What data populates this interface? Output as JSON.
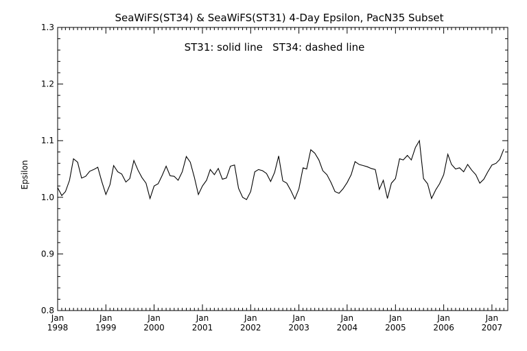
{
  "chart_data": {
    "type": "line",
    "title": "SeaWiFS(ST34) & SeaWiFS(ST31) 4-Day Epsilon, PacN35 Subset",
    "annotation": "ST31: solid line   ST34: dashed line",
    "xlabel": "",
    "ylabel": "Epsilon",
    "xlim": [
      "1998-01-01",
      "2007-05-01"
    ],
    "ylim": [
      0.8,
      1.3
    ],
    "yticks": [
      "0.8",
      "0.9",
      "1.0",
      "1.1",
      "1.2",
      "1.3"
    ],
    "xticks": [
      {
        "month": "Jan",
        "year": "1998"
      },
      {
        "month": "Jan",
        "year": "1999"
      },
      {
        "month": "Jan",
        "year": "2000"
      },
      {
        "month": "Jan",
        "year": "2001"
      },
      {
        "month": "Jan",
        "year": "2002"
      },
      {
        "month": "Jan",
        "year": "2003"
      },
      {
        "month": "Jan",
        "year": "2004"
      },
      {
        "month": "Jan",
        "year": "2005"
      },
      {
        "month": "Jan",
        "year": "2006"
      },
      {
        "month": "Jan",
        "year": "2007"
      }
    ],
    "grid": false,
    "series": [
      {
        "name": "ST31",
        "style": "solid",
        "color": "#000000",
        "points": [
          [
            "1998-01-01",
            1.017
          ],
          [
            "1998-02-01",
            1.003
          ],
          [
            "1998-03-01",
            1.01
          ],
          [
            "1998-04-01",
            1.03
          ],
          [
            "1998-05-01",
            1.068
          ],
          [
            "1998-06-01",
            1.062
          ],
          [
            "1998-07-01",
            1.034
          ],
          [
            "1998-08-01",
            1.037
          ],
          [
            "1998-09-01",
            1.046
          ],
          [
            "1998-10-01",
            1.049
          ],
          [
            "1998-11-01",
            1.053
          ],
          [
            "1998-12-01",
            1.028
          ],
          [
            "1999-01-01",
            1.005
          ],
          [
            "1999-02-01",
            1.022
          ],
          [
            "1999-03-01",
            1.056
          ],
          [
            "1999-04-01",
            1.045
          ],
          [
            "1999-05-01",
            1.041
          ],
          [
            "1999-06-01",
            1.027
          ],
          [
            "1999-07-01",
            1.033
          ],
          [
            "1999-08-01",
            1.065
          ],
          [
            "1999-09-01",
            1.048
          ],
          [
            "1999-10-01",
            1.035
          ],
          [
            "1999-11-01",
            1.025
          ],
          [
            "1999-12-01",
            0.998
          ],
          [
            "2000-01-01",
            1.02
          ],
          [
            "2000-02-01",
            1.024
          ],
          [
            "2000-03-01",
            1.038
          ],
          [
            "2000-04-01",
            1.055
          ],
          [
            "2000-05-01",
            1.038
          ],
          [
            "2000-06-01",
            1.037
          ],
          [
            "2000-07-01",
            1.03
          ],
          [
            "2000-08-01",
            1.045
          ],
          [
            "2000-09-01",
            1.072
          ],
          [
            "2000-10-01",
            1.062
          ],
          [
            "2000-11-01",
            1.035
          ],
          [
            "2000-12-01",
            1.005
          ],
          [
            "2001-01-01",
            1.02
          ],
          [
            "2001-02-01",
            1.03
          ],
          [
            "2001-03-01",
            1.049
          ],
          [
            "2001-04-01",
            1.04
          ],
          [
            "2001-05-01",
            1.051
          ],
          [
            "2001-06-01",
            1.032
          ],
          [
            "2001-07-01",
            1.034
          ],
          [
            "2001-08-01",
            1.055
          ],
          [
            "2001-09-01",
            1.057
          ],
          [
            "2001-10-01",
            1.016
          ],
          [
            "2001-11-01",
            1.0
          ],
          [
            "2001-12-01",
            0.996
          ],
          [
            "2002-01-01",
            1.01
          ],
          [
            "2002-02-01",
            1.045
          ],
          [
            "2002-03-01",
            1.049
          ],
          [
            "2002-04-01",
            1.047
          ],
          [
            "2002-05-01",
            1.042
          ],
          [
            "2002-06-01",
            1.028
          ],
          [
            "2002-07-01",
            1.044
          ],
          [
            "2002-08-01",
            1.073
          ],
          [
            "2002-09-01",
            1.029
          ],
          [
            "2002-10-01",
            1.025
          ],
          [
            "2002-11-01",
            1.012
          ],
          [
            "2002-12-01",
            0.997
          ],
          [
            "2003-01-01",
            1.015
          ],
          [
            "2003-02-01",
            1.052
          ],
          [
            "2003-03-01",
            1.05
          ],
          [
            "2003-04-01",
            1.084
          ],
          [
            "2003-05-01",
            1.078
          ],
          [
            "2003-06-01",
            1.066
          ],
          [
            "2003-07-01",
            1.047
          ],
          [
            "2003-08-01",
            1.04
          ],
          [
            "2003-09-01",
            1.026
          ],
          [
            "2003-10-01",
            1.01
          ],
          [
            "2003-11-01",
            1.007
          ],
          [
            "2003-12-01",
            1.015
          ],
          [
            "2004-01-01",
            1.026
          ],
          [
            "2004-02-01",
            1.04
          ],
          [
            "2004-03-01",
            1.063
          ],
          [
            "2004-04-01",
            1.058
          ],
          [
            "2004-05-01",
            1.056
          ],
          [
            "2004-06-01",
            1.054
          ],
          [
            "2004-07-01",
            1.051
          ],
          [
            "2004-08-01",
            1.049
          ],
          [
            "2004-09-01",
            1.014
          ],
          [
            "2004-10-01",
            1.03
          ],
          [
            "2004-11-01",
            0.998
          ],
          [
            "2004-12-01",
            1.025
          ],
          [
            "2005-01-01",
            1.033
          ],
          [
            "2005-02-01",
            1.068
          ],
          [
            "2005-03-01",
            1.066
          ],
          [
            "2005-04-01",
            1.074
          ],
          [
            "2005-05-01",
            1.066
          ],
          [
            "2005-06-01",
            1.088
          ],
          [
            "2005-07-01",
            1.1
          ],
          [
            "2005-08-01",
            1.033
          ],
          [
            "2005-09-01",
            1.024
          ],
          [
            "2005-10-01",
            0.998
          ],
          [
            "2005-11-01",
            1.013
          ],
          [
            "2005-12-01",
            1.024
          ],
          [
            "2006-01-01",
            1.04
          ],
          [
            "2006-02-01",
            1.076
          ],
          [
            "2006-03-01",
            1.058
          ],
          [
            "2006-04-01",
            1.05
          ],
          [
            "2006-05-01",
            1.052
          ],
          [
            "2006-06-01",
            1.045
          ],
          [
            "2006-07-01",
            1.058
          ],
          [
            "2006-08-01",
            1.048
          ],
          [
            "2006-09-01",
            1.04
          ],
          [
            "2006-10-01",
            1.025
          ],
          [
            "2006-11-01",
            1.032
          ],
          [
            "2006-12-01",
            1.045
          ],
          [
            "2007-01-01",
            1.057
          ],
          [
            "2007-02-01",
            1.06
          ],
          [
            "2007-03-01",
            1.067
          ],
          [
            "2007-04-01",
            1.085
          ]
        ]
      }
    ]
  }
}
